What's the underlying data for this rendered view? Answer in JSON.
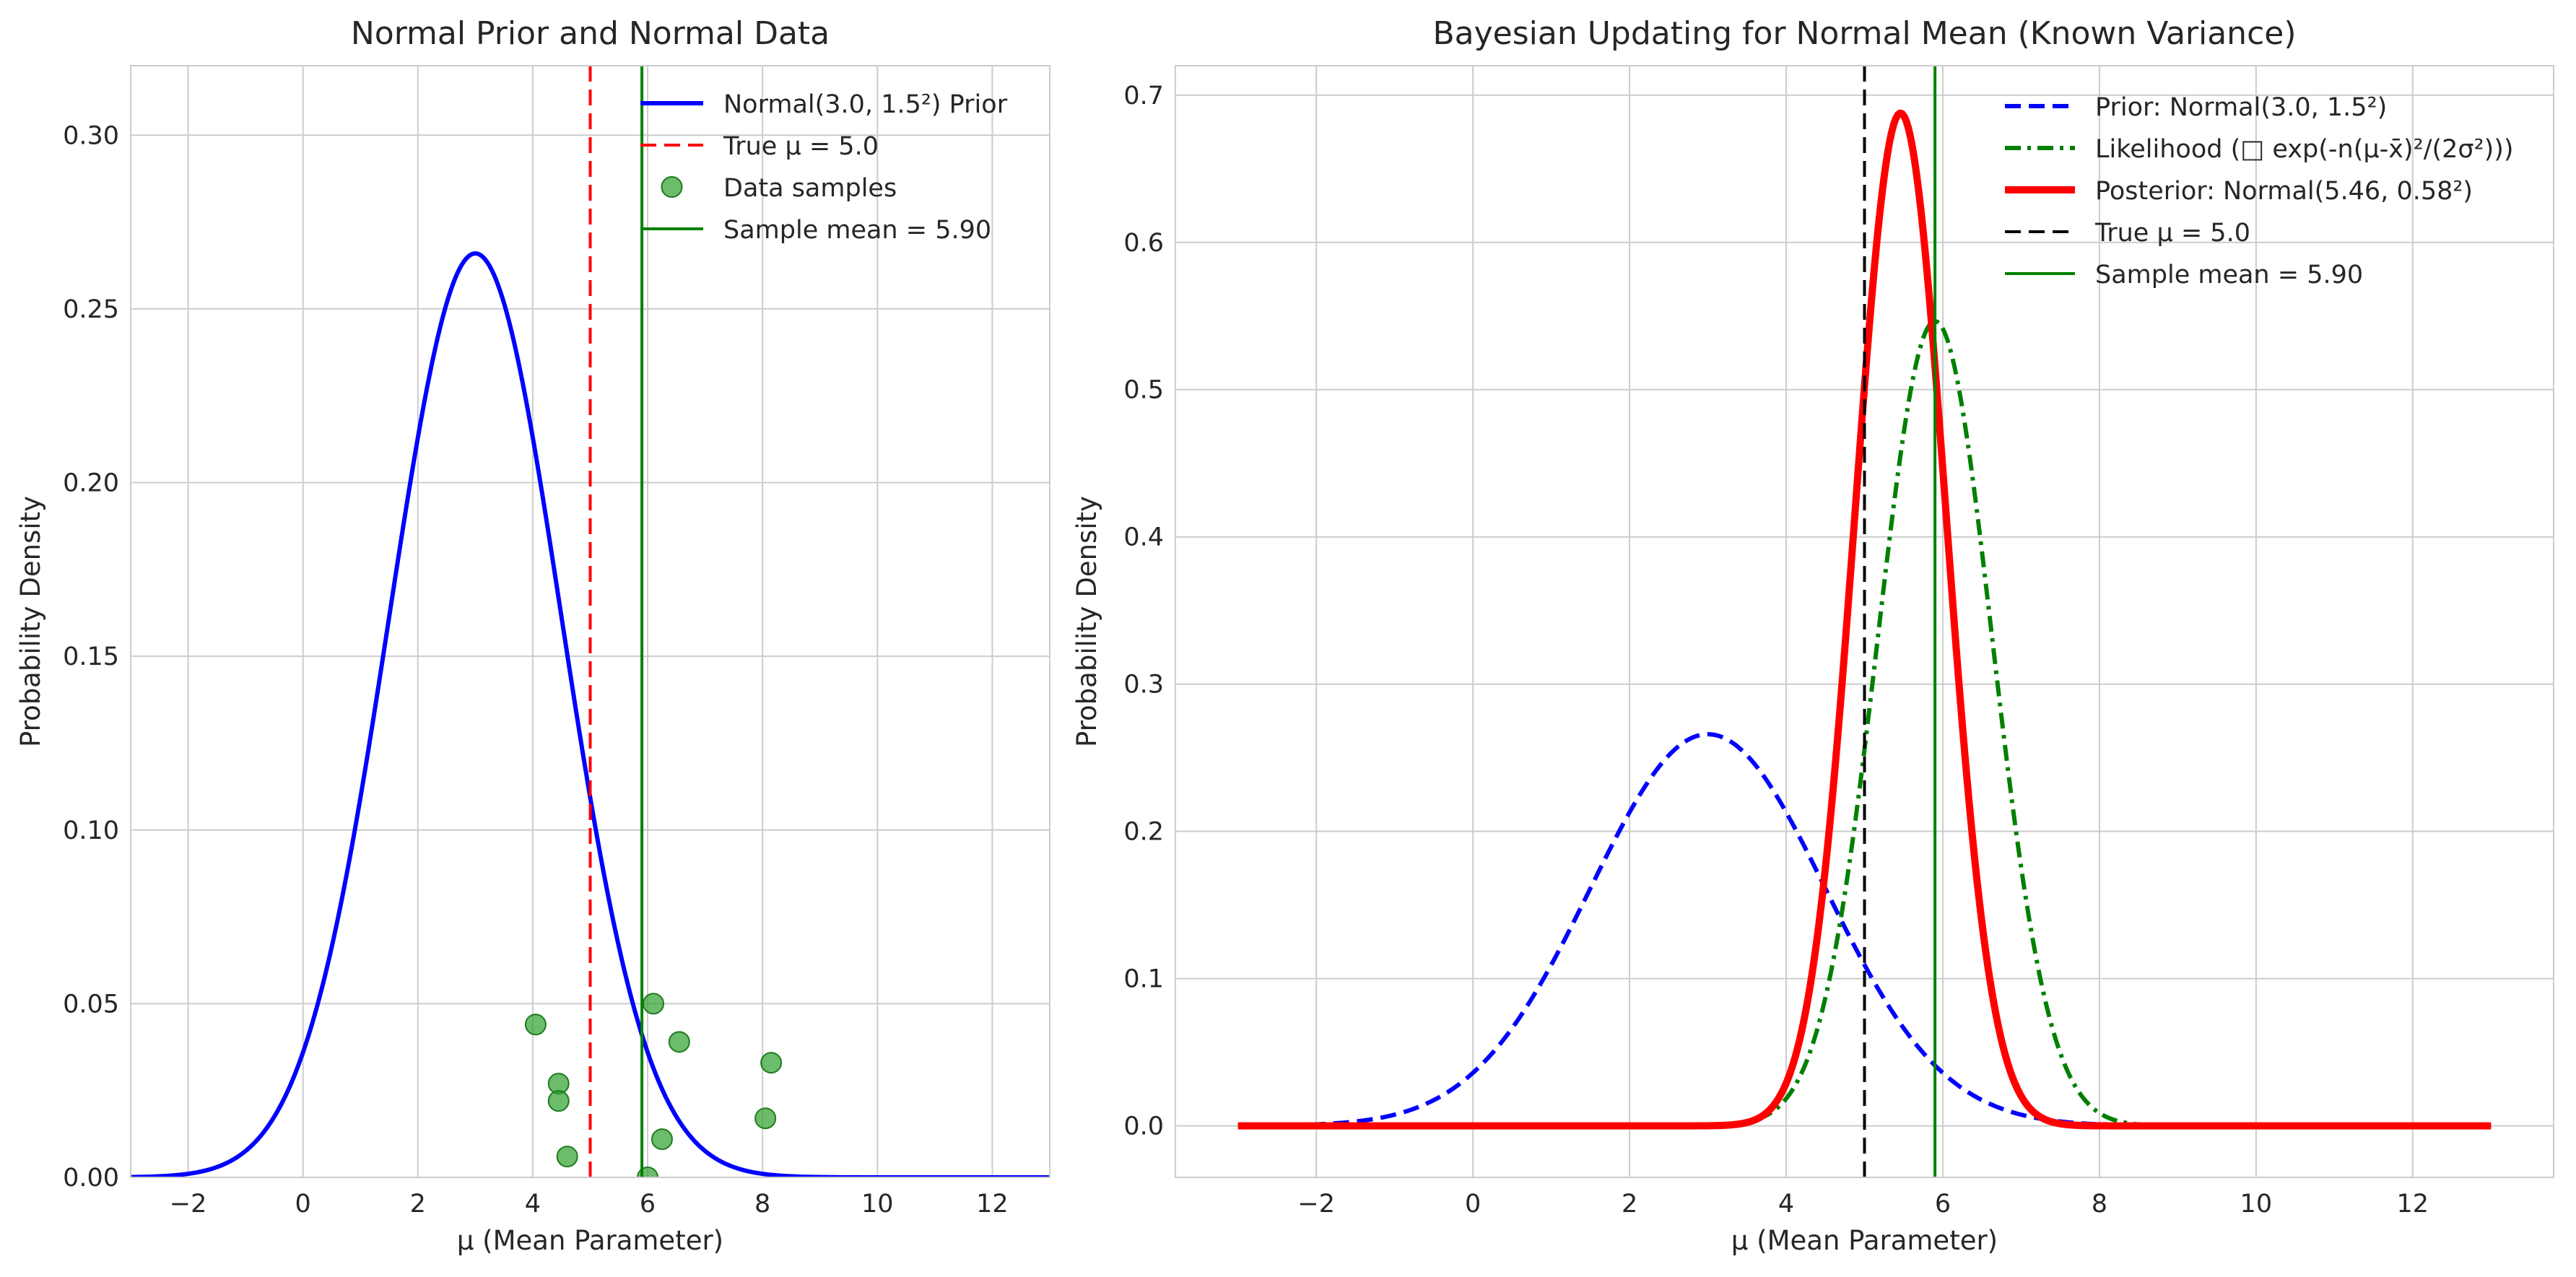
{
  "chart_data": [
    {
      "type": "line",
      "title": "Normal Prior and Normal Data",
      "xlabel": "μ (Mean Parameter)",
      "ylabel": "Probability Density",
      "xlim": [
        -3,
        13
      ],
      "ylim": [
        0,
        0.32
      ],
      "xticks": [
        -2,
        0,
        2,
        4,
        6,
        8,
        10,
        12
      ],
      "xtick_labels": [
        "−2",
        "0",
        "2",
        "4",
        "6",
        "8",
        "10",
        "12"
      ],
      "yticks": [
        0,
        0.05,
        0.1,
        0.15,
        0.2,
        0.25,
        0.3
      ],
      "ytick_labels": [
        "0.00",
        "0.05",
        "0.10",
        "0.15",
        "0.20",
        "0.25",
        "0.30"
      ],
      "grid": true,
      "legend_position": "top-right",
      "series": [
        {
          "name": "Normal(3.0, 1.5²) Prior",
          "kind": "normal_curve",
          "mean": 3.0,
          "sd": 1.5,
          "x_range": [
            -3,
            13
          ],
          "color": "#0000ff",
          "style": "solid",
          "width": "thick"
        },
        {
          "name": "True μ = 5.0",
          "kind": "vline",
          "x": 5.0,
          "color": "#ff0000",
          "style": "dashed"
        },
        {
          "name": "Data samples",
          "kind": "scatter",
          "color": "#2ca02c",
          "points": [
            [
              4.05,
              0.044
            ],
            [
              4.45,
              0.027
            ],
            [
              4.45,
              0.022
            ],
            [
              4.6,
              0.006
            ],
            [
              6.0,
              0.0
            ],
            [
              6.1,
              0.05
            ],
            [
              6.25,
              0.011
            ],
            [
              6.55,
              0.039
            ],
            [
              8.05,
              0.017
            ],
            [
              8.15,
              0.033
            ]
          ]
        },
        {
          "name": "Sample mean = 5.90",
          "kind": "vline",
          "x": 5.9,
          "color": "#008000",
          "style": "solid"
        }
      ]
    },
    {
      "type": "line",
      "title": "Bayesian Updating for Normal Mean (Known Variance)",
      "xlabel": "μ (Mean Parameter)",
      "ylabel": "Probability Density",
      "xlim": [
        -3.8,
        13.8
      ],
      "ylim": [
        -0.035,
        0.72
      ],
      "xticks": [
        -2,
        0,
        2,
        4,
        6,
        8,
        10,
        12
      ],
      "xtick_labels": [
        "−2",
        "0",
        "2",
        "4",
        "6",
        "8",
        "10",
        "12"
      ],
      "yticks": [
        0,
        0.1,
        0.2,
        0.3,
        0.4,
        0.5,
        0.6,
        0.7
      ],
      "ytick_labels": [
        "0.0",
        "0.1",
        "0.2",
        "0.3",
        "0.4",
        "0.5",
        "0.6",
        "0.7"
      ],
      "grid": true,
      "legend_position": "top-right",
      "series": [
        {
          "name": "Prior: Normal(3.0, 1.5²)",
          "kind": "normal_curve",
          "mean": 3.0,
          "sd": 1.5,
          "x_range": [
            -3,
            13
          ],
          "color": "#0000ff",
          "style": "dashed",
          "width": "thick"
        },
        {
          "name": "Likelihood (□ exp(-n(μ-x̄)²/(2σ²)))",
          "kind": "normal_curve",
          "mean": 5.9,
          "sd": 0.73,
          "x_range": [
            -3,
            13
          ],
          "color": "#008000",
          "style": "dashdot",
          "width": "thick"
        },
        {
          "name": "Posterior: Normal(5.46, 0.58²)",
          "kind": "normal_curve",
          "mean": 5.46,
          "sd": 0.58,
          "x_range": [
            -3,
            13
          ],
          "color": "#ff0000",
          "style": "solid",
          "width": "heavy"
        },
        {
          "name": "True μ = 5.0",
          "kind": "vline",
          "x": 5.0,
          "color": "#000000",
          "style": "dashed"
        },
        {
          "name": "Sample mean = 5.90",
          "kind": "vline",
          "x": 5.9,
          "color": "#008000",
          "style": "solid"
        }
      ]
    }
  ]
}
